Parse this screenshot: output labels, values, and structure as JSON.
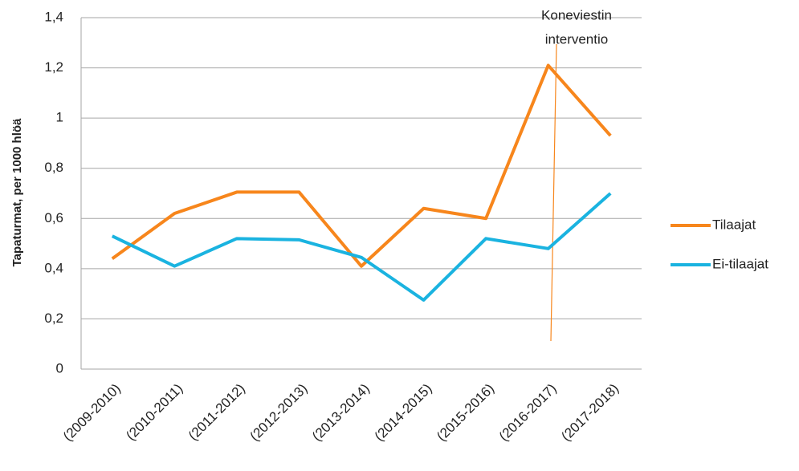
{
  "chart_data": {
    "type": "line",
    "y_label": "Tapaturmat, per 1000 hlöä",
    "annotation": [
      "Koneviestin",
      "interventio"
    ],
    "categories": [
      "(2009-2010)",
      "(2010-2011)",
      "(2011-2012)",
      "(2012-2013)",
      "(2013-2014)",
      "(2014-2015)",
      "(2015-2016)",
      "(2016-2017)",
      "(2017-2018)"
    ],
    "series": [
      {
        "name": "Tilaajat",
        "color": "#f7861c",
        "values": [
          0.44,
          0.62,
          0.705,
          0.705,
          0.41,
          0.64,
          0.6,
          1.21,
          0.93
        ]
      },
      {
        "name": "Ei-tilaajat",
        "color": "#1ab3e0",
        "values": [
          0.53,
          0.41,
          0.52,
          0.515,
          0.445,
          0.275,
          0.52,
          0.48,
          0.7
        ]
      }
    ],
    "ylim": [
      0,
      1.4
    ],
    "yticks": [
      0,
      {
        "value": 0.2,
        "label": "0,2"
      },
      {
        "value": 0.4,
        "label": "0,4"
      },
      {
        "value": 0.6,
        "label": "0,6"
      },
      {
        "value": 0.8,
        "label": "0,8"
      },
      1,
      {
        "value": 1.2,
        "label": "1,2"
      },
      {
        "value": 1.4,
        "label": "1,4"
      }
    ],
    "grid": true,
    "legend": "right"
  }
}
